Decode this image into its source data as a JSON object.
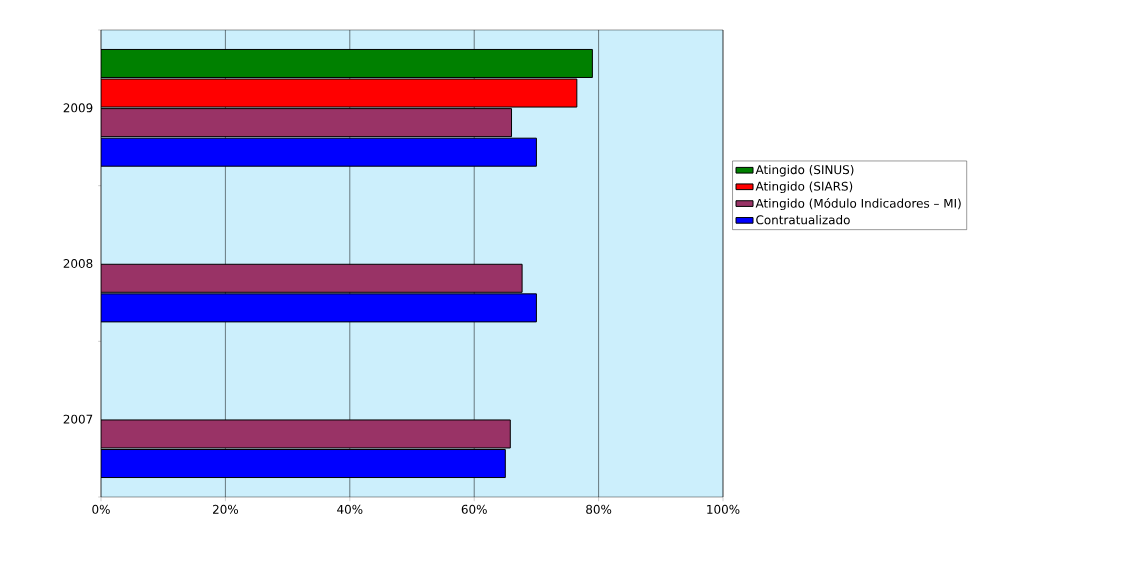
{
  "chart_data": {
    "type": "bar",
    "orientation": "horizontal",
    "categories": [
      "2009",
      "2008",
      "2007"
    ],
    "series": [
      {
        "name": "Contratualizado",
        "color": "#0000ff",
        "values": [
          70,
          70,
          65
        ]
      },
      {
        "name": "Atingido (Módulo Indicadores – MI)",
        "color": "#993366",
        "values": [
          66,
          67.7,
          65.8
        ]
      },
      {
        "name": "Atingido (SIARS)",
        "color": "#ff0000",
        "values": [
          76.5,
          null,
          null
        ]
      },
      {
        "name": "Atingido (SINUS)",
        "color": "#008000",
        "values": [
          79,
          null,
          null
        ]
      }
    ],
    "xlim": [
      0,
      100
    ],
    "xticks": [
      {
        "value": 0,
        "label": "0%"
      },
      {
        "value": 20,
        "label": "20%"
      },
      {
        "value": 40,
        "label": "40%"
      },
      {
        "value": 60,
        "label": "60%"
      },
      {
        "value": 80,
        "label": "80%"
      },
      {
        "value": 100,
        "label": "100%"
      }
    ],
    "grid": "x",
    "legend": "right"
  }
}
